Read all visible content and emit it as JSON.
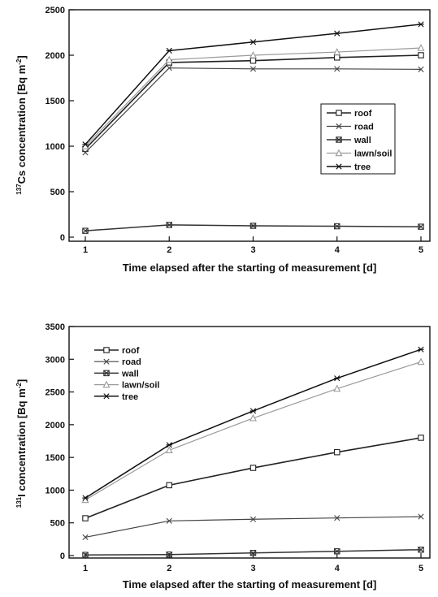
{
  "chart_data": [
    {
      "type": "line",
      "ylabel_iso": "137",
      "ylabel_main": "Cs concentration [Bq m",
      "ylabel_exp": "-2",
      "ylabel_end": "]",
      "xlabel": "Time elapsed after the starting of measurement [d]",
      "x": [
        1,
        2,
        3,
        4,
        5
      ],
      "xlim": [
        0.8,
        5.2
      ],
      "ylim": [
        0,
        2500
      ],
      "yticks": [
        0,
        500,
        1000,
        1500,
        2000,
        2500
      ],
      "legend_position": "right-middle",
      "series": [
        {
          "name": "roof",
          "marker": "square",
          "values": [
            970,
            1920,
            1940,
            1975,
            2000
          ]
        },
        {
          "name": "road",
          "marker": "x",
          "values": [
            930,
            1860,
            1850,
            1850,
            1845
          ]
        },
        {
          "name": "wall",
          "marker": "boxed-x",
          "values": [
            70,
            135,
            125,
            120,
            115
          ]
        },
        {
          "name": "lawn/soil",
          "marker": "triangle",
          "values": [
            1000,
            1950,
            2000,
            2035,
            2080
          ]
        },
        {
          "name": "tree",
          "marker": "star",
          "values": [
            1020,
            2050,
            2145,
            2240,
            2340
          ]
        }
      ]
    },
    {
      "type": "line",
      "ylabel_iso": "131",
      "ylabel_main": "I concentration [Bq m",
      "ylabel_exp": "-2",
      "ylabel_end": "]",
      "xlabel": "Time elapsed after the starting of measurement [d]",
      "x": [
        1,
        2,
        3,
        4,
        5
      ],
      "xlim": [
        0.8,
        5.2
      ],
      "ylim": [
        0,
        3500
      ],
      "yticks": [
        0,
        500,
        1000,
        1500,
        2000,
        2500,
        3000,
        3500
      ],
      "legend_position": "top-left",
      "series": [
        {
          "name": "roof",
          "marker": "square",
          "values": [
            570,
            1075,
            1340,
            1580,
            1800
          ]
        },
        {
          "name": "road",
          "marker": "x",
          "values": [
            280,
            530,
            555,
            575,
            595
          ]
        },
        {
          "name": "wall",
          "marker": "boxed-x",
          "values": [
            10,
            15,
            40,
            65,
            90
          ]
        },
        {
          "name": "lawn/soil",
          "marker": "triangle",
          "values": [
            850,
            1610,
            2100,
            2550,
            2960
          ]
        },
        {
          "name": "tree",
          "marker": "star",
          "values": [
            880,
            1690,
            2210,
            2710,
            3150
          ]
        }
      ]
    }
  ]
}
